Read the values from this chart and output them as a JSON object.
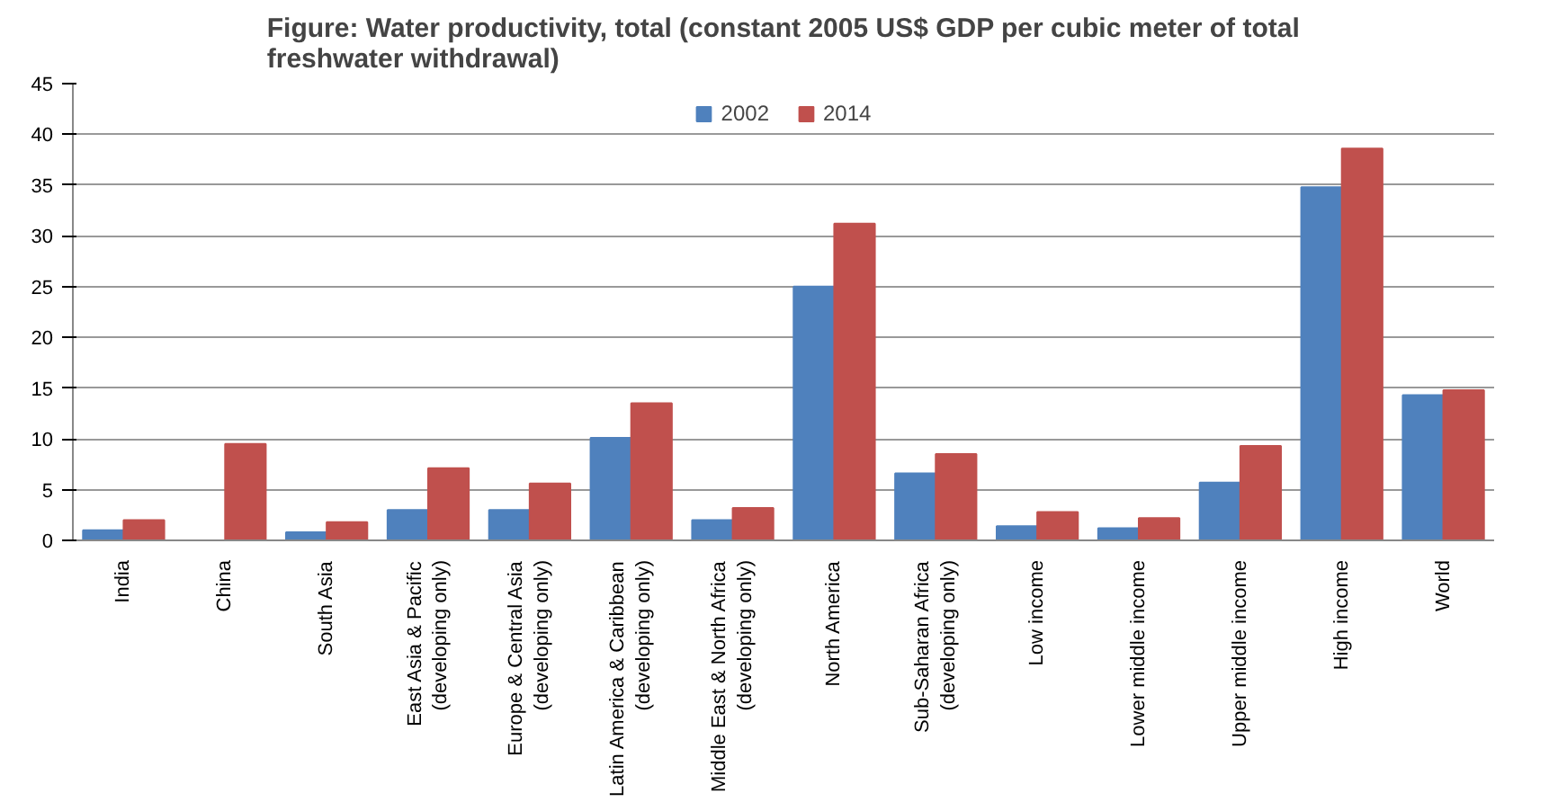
{
  "chart_data": {
    "type": "bar",
    "title": "Figure: Water productivity, total (constant 2005 US$ GDP per cubic meter of total\nfreshwater withdrawal)",
    "categories": [
      "India",
      "China",
      "South Asia",
      "East Asia & Pacific\n(developing only)",
      "Europe & Central Asia\n(developing only)",
      "Latin America & Caribbean\n(developing only)",
      "Middle East & North Africa\n(developing only)",
      "North America",
      "Sub-Saharan Africa\n(developing only)",
      "Low income",
      "Lower middle income",
      "Upper middle income",
      "High income",
      "World"
    ],
    "series": [
      {
        "name": "2002",
        "color": "#4f81bd",
        "values": [
          1.0,
          null,
          0.8,
          3.0,
          3.0,
          10.1,
          2.0,
          25.0,
          6.6,
          1.4,
          1.2,
          5.7,
          34.8,
          14.3
        ]
      },
      {
        "name": "2014",
        "color": "#c0504d",
        "values": [
          2.0,
          9.5,
          1.8,
          7.1,
          5.6,
          13.5,
          3.2,
          31.2,
          8.5,
          2.8,
          2.2,
          9.3,
          38.6,
          14.8
        ]
      }
    ],
    "ylim": [
      0,
      45
    ],
    "yticks": [
      0,
      5,
      10,
      15,
      20,
      25,
      30,
      35,
      40,
      45
    ],
    "grid": "y",
    "legend": "top"
  }
}
